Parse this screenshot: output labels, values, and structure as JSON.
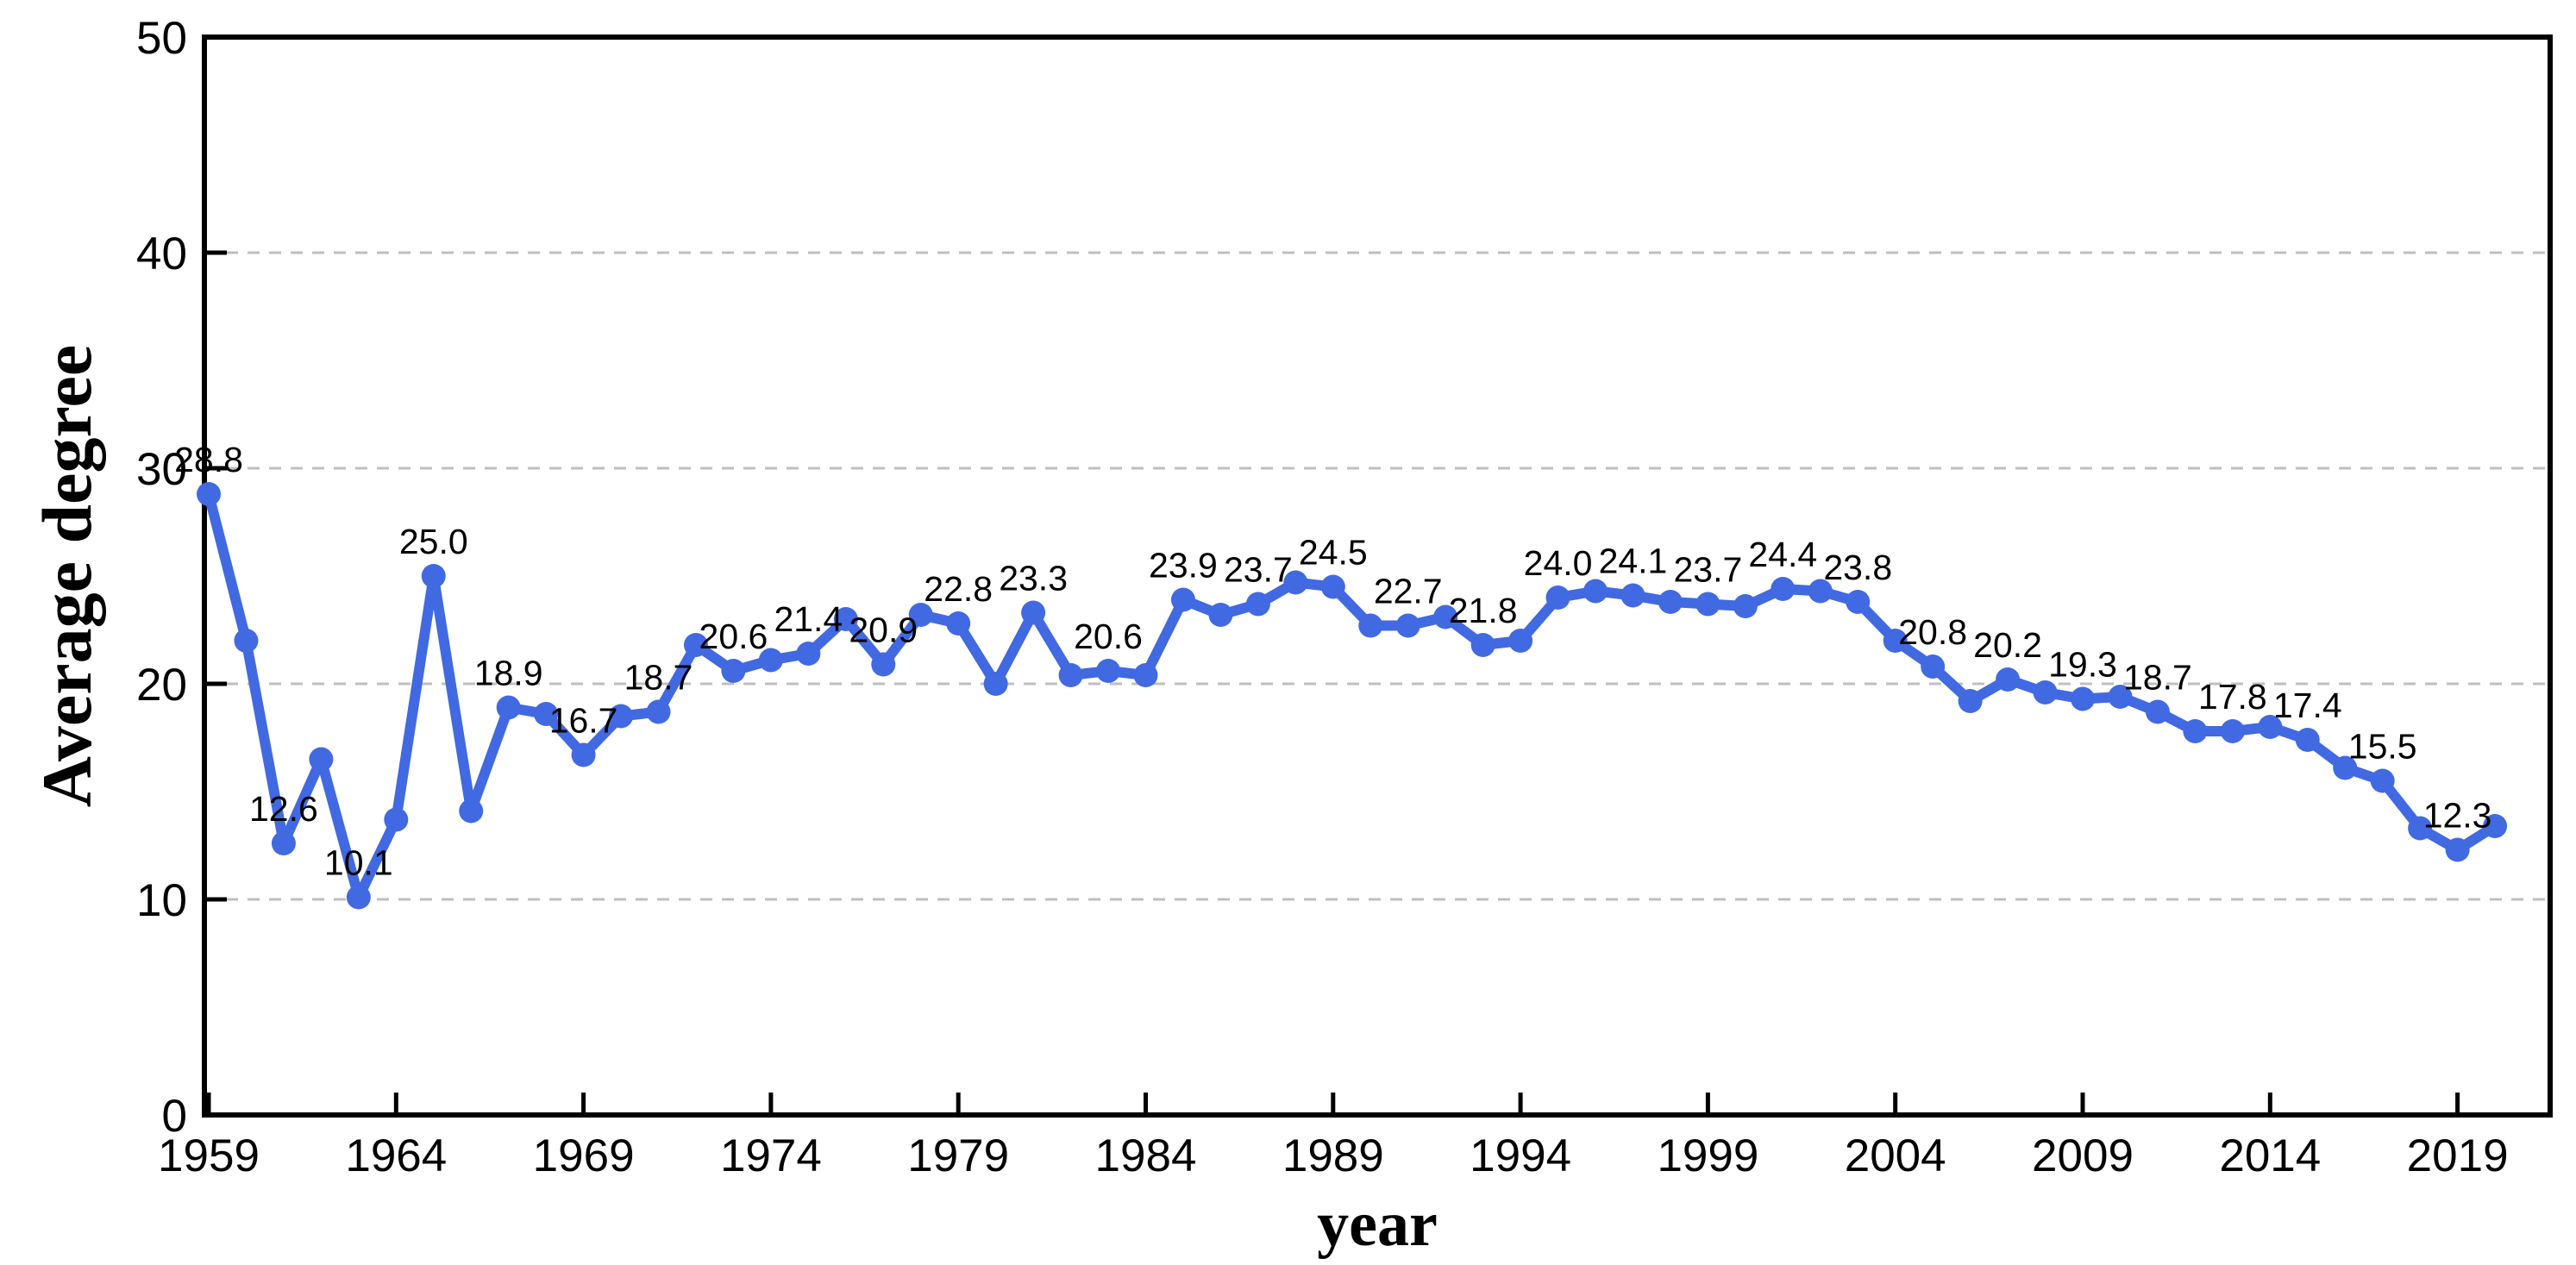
{
  "chart_data": {
    "type": "line",
    "title": "",
    "xlabel": "year",
    "ylabel": "Average degree",
    "x": [
      1959,
      1960,
      1961,
      1962,
      1963,
      1964,
      1965,
      1966,
      1967,
      1968,
      1969,
      1970,
      1971,
      1972,
      1973,
      1974,
      1975,
      1976,
      1977,
      1978,
      1979,
      1980,
      1981,
      1982,
      1983,
      1984,
      1985,
      1986,
      1987,
      1988,
      1989,
      1990,
      1991,
      1992,
      1993,
      1994,
      1995,
      1996,
      1997,
      1998,
      1999,
      2000,
      2001,
      2002,
      2003,
      2004,
      2005,
      2006,
      2007,
      2008,
      2009,
      2010,
      2011,
      2012,
      2013,
      2014,
      2015,
      2016,
      2017,
      2018,
      2019,
      2020
    ],
    "values": [
      28.8,
      22.0,
      12.6,
      16.5,
      10.1,
      13.7,
      25.0,
      14.1,
      18.9,
      18.6,
      16.7,
      18.5,
      18.7,
      21.8,
      20.6,
      21.1,
      21.4,
      23.0,
      20.9,
      23.2,
      22.8,
      20.0,
      23.3,
      20.4,
      20.6,
      20.4,
      23.9,
      23.2,
      23.7,
      24.7,
      24.5,
      22.7,
      22.7,
      23.1,
      21.8,
      22.0,
      24.0,
      24.3,
      24.1,
      23.8,
      23.7,
      23.6,
      24.4,
      24.3,
      23.8,
      22.0,
      20.8,
      19.2,
      20.2,
      19.6,
      19.3,
      19.4,
      18.7,
      17.8,
      17.8,
      18.0,
      17.4,
      16.1,
      15.5,
      13.3,
      12.3,
      13.4
    ],
    "point_labels": [
      "28.8",
      null,
      "12.6",
      null,
      "10.1",
      null,
      "25.0",
      null,
      "18.9",
      null,
      "16.7",
      null,
      "18.7",
      null,
      "20.6",
      null,
      "21.4",
      null,
      "20.9",
      null,
      "22.8",
      null,
      "23.3",
      null,
      "20.6",
      null,
      "23.9",
      null,
      "23.7",
      null,
      "24.5",
      null,
      "22.7",
      null,
      "21.8",
      null,
      "24.0",
      null,
      "24.1",
      null,
      "23.7",
      null,
      "24.4",
      null,
      "23.8",
      null,
      "20.8",
      null,
      "20.2",
      null,
      "19.3",
      null,
      "18.7",
      null,
      "17.8",
      null,
      "17.4",
      null,
      "15.5",
      null,
      "12.3",
      null
    ],
    "ylim": [
      0,
      50
    ],
    "yticks": [
      "0",
      "10",
      "20",
      "30",
      "40",
      "50"
    ],
    "xticks": [
      "1959",
      "1964",
      "1969",
      "1974",
      "1979",
      "1984",
      "1989",
      "1994",
      "1999",
      "2004",
      "2009",
      "2014",
      "2019"
    ],
    "grid": "horizontal-dashed",
    "legend": "none",
    "colors": {
      "line": "#4169E1",
      "marker": "#4169E1",
      "grid": "#bfbfbf",
      "axis": "#000000",
      "text": "#000000",
      "background": "#ffffff"
    }
  }
}
